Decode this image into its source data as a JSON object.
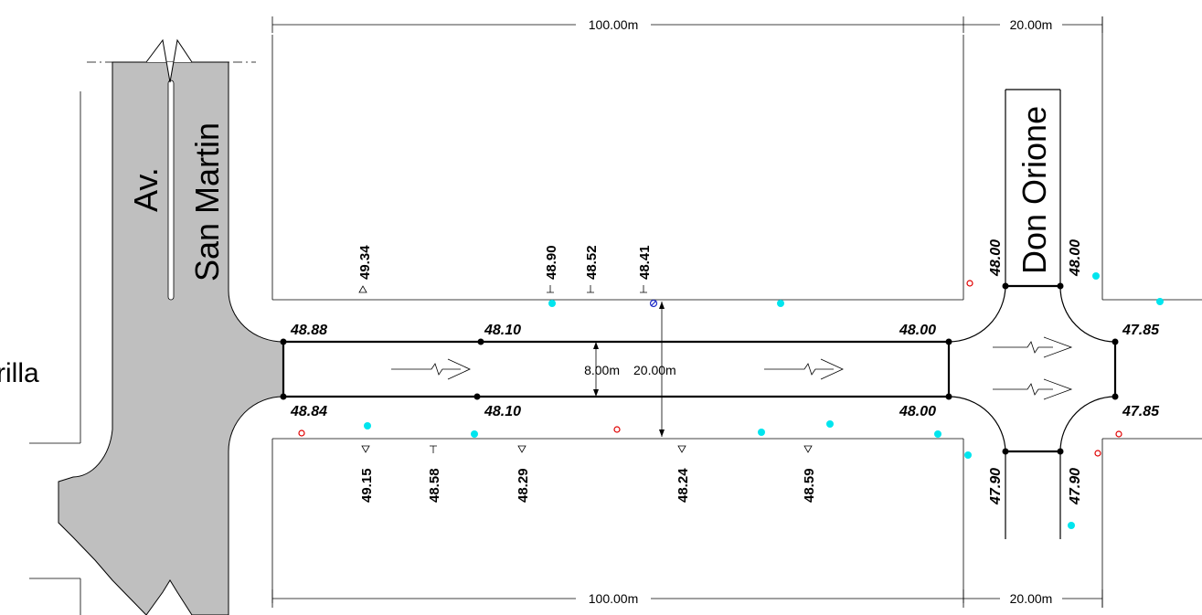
{
  "dimensions": {
    "top_block": "100.00m",
    "top_crossing": "20.00m",
    "bottom_block": "100.00m",
    "bottom_crossing": "20.00m",
    "street_width": "8.00m",
    "lot_line_width": "20.00m"
  },
  "streets": {
    "av_prefix": "Av.",
    "av_name": "San Martin",
    "cross_street": "Don Orione",
    "left_fragment": "rilla"
  },
  "road_levels": {
    "start_top": "48.88",
    "mid_top": "48.10",
    "end_top": "48.00",
    "start_bottom": "48.84",
    "mid_bottom": "48.10",
    "end_bottom": "48.00",
    "intersection_left_top": "48.00",
    "intersection_right_top": "48.00",
    "intersection_east_top": "47.85",
    "intersection_east_bottom": "47.85",
    "intersection_left_bottom": "47.90",
    "intersection_right_bottom": "47.90"
  },
  "spot_levels_top": [
    {
      "value": "49.34",
      "symbol": "up-triangle"
    },
    {
      "value": "48.90",
      "symbol": "tee"
    },
    {
      "value": "48.52",
      "symbol": "tee"
    },
    {
      "value": "48.41",
      "symbol": "tee"
    }
  ],
  "spot_levels_bottom": [
    {
      "value": "49.15",
      "symbol": "down-triangle"
    },
    {
      "value": "48.58",
      "symbol": "tee-down"
    },
    {
      "value": "48.29",
      "symbol": "down-triangle"
    },
    {
      "value": "48.24",
      "symbol": "down-triangle"
    },
    {
      "value": "48.59",
      "symbol": "down-triangle"
    }
  ],
  "colors": {
    "avenue_fill": "#bfbfbf",
    "marker_cyan": "#00e5ee",
    "marker_red": "#e00000",
    "marker_blue": "#1e2cc8",
    "line": "#000000"
  }
}
